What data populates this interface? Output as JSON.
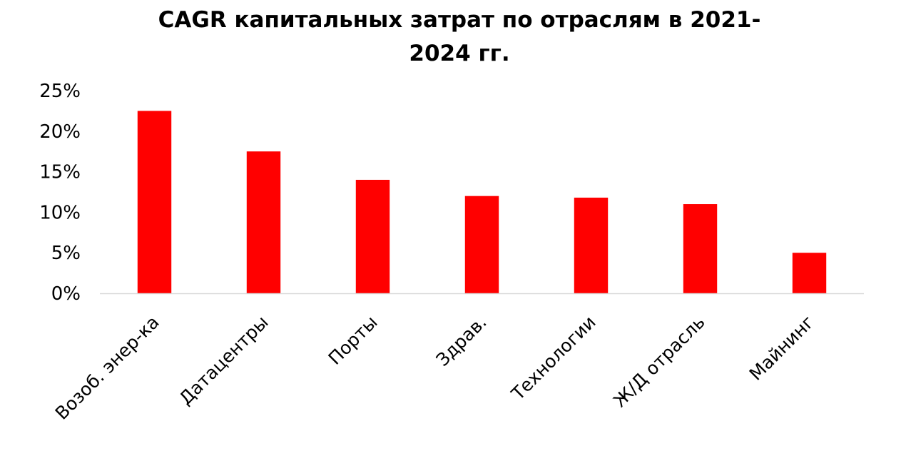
{
  "chart_data": {
    "type": "bar",
    "title_lines": [
      "CAGR капитальных затрат по отраслям в 2021-",
      "2024 гг."
    ],
    "categories": [
      "Возоб. энер-ка",
      "Датацентры",
      "Порты",
      "Здрав.",
      "Технологии",
      "Ж/Д отрасль",
      "Майнинг"
    ],
    "values": [
      0.225,
      0.175,
      0.14,
      0.12,
      0.118,
      0.11,
      0.05
    ],
    "ylim": [
      0,
      0.25
    ],
    "y_ticks": [
      0,
      0.05,
      0.1,
      0.15,
      0.2,
      0.25
    ],
    "y_tick_labels": [
      "0%",
      "5%",
      "10%",
      "15%",
      "20%",
      "25%"
    ],
    "grid": false,
    "legend": "none",
    "colors": {
      "bar": "#ff0000",
      "axis": "#d9d9d9",
      "text": "#000000"
    }
  }
}
